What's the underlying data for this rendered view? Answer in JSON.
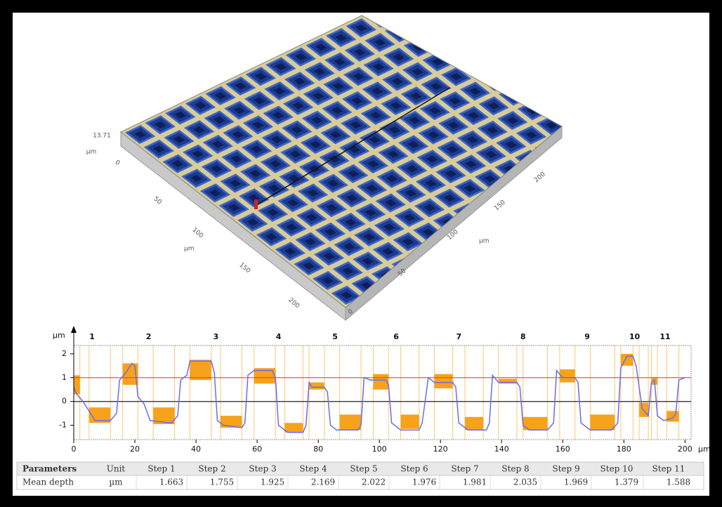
{
  "surface_3d": {
    "z_max": "13.71",
    "z_unit": "µm",
    "left_axis": {
      "labels": [
        "0",
        "50",
        "100",
        "150",
        "200"
      ],
      "unit": "µm"
    },
    "right_axis": {
      "labels": [
        "0",
        "50",
        "100",
        "150",
        "200"
      ],
      "unit": "µm"
    }
  },
  "chart_data": {
    "type": "line",
    "x_unit": "µm",
    "y_unit": "µm",
    "xlim": [
      0,
      202
    ],
    "ylim": [
      -1.6,
      2.35
    ],
    "xticks": [
      0,
      20,
      40,
      60,
      80,
      100,
      120,
      140,
      160,
      180,
      200
    ],
    "yticks": [
      -1,
      0,
      1,
      2
    ],
    "x": [
      0,
      1,
      3,
      6,
      7,
      12,
      14,
      15,
      17,
      19,
      20,
      21,
      23,
      25,
      32,
      34,
      35,
      37,
      38,
      45,
      46,
      47,
      49,
      55,
      56,
      57,
      59,
      60,
      65,
      66,
      67,
      69,
      70,
      75,
      76,
      77,
      78,
      82,
      83,
      84,
      86,
      87,
      93,
      94,
      95,
      97,
      102,
      103,
      104,
      106,
      107,
      113,
      114,
      116,
      118,
      124,
      125,
      126,
      128,
      129,
      135,
      136,
      137,
      139,
      145,
      146,
      147,
      149,
      155,
      157,
      158,
      160,
      164,
      165,
      166,
      168,
      169,
      176,
      178,
      179,
      181,
      183,
      184,
      186,
      188,
      189,
      190,
      191,
      193,
      196,
      197,
      198,
      200
    ],
    "series": [
      {
        "color": "#6b6bf0",
        "values": [
          0.6,
          0.3,
          0.0,
          -0.6,
          -0.8,
          -0.8,
          -0.5,
          0.9,
          1.2,
          1.6,
          1.5,
          0.2,
          -0.1,
          -0.8,
          -0.9,
          -0.6,
          0.9,
          1.1,
          1.7,
          1.7,
          1.2,
          -0.8,
          -1.0,
          -1.1,
          -0.9,
          1.1,
          1.3,
          1.3,
          1.3,
          1.0,
          -1.0,
          -1.2,
          -1.3,
          -1.3,
          -1.0,
          0.8,
          0.6,
          0.6,
          0.4,
          -1.0,
          -1.2,
          -1.2,
          -1.2,
          -1.0,
          1.0,
          0.9,
          0.9,
          0.7,
          -0.9,
          -1.1,
          -1.2,
          -1.2,
          -0.9,
          1.0,
          0.8,
          0.8,
          0.6,
          -0.9,
          -1.1,
          -1.2,
          -1.2,
          -0.9,
          1.1,
          0.8,
          0.8,
          0.6,
          -1.0,
          -1.2,
          -1.2,
          -0.9,
          1.3,
          1.0,
          1.0,
          0.8,
          -0.9,
          -1.1,
          -1.2,
          -1.2,
          -0.9,
          1.4,
          1.9,
          1.9,
          1.5,
          -0.3,
          -0.6,
          0.8,
          0.9,
          -0.6,
          -0.8,
          -0.7,
          -0.5,
          0.9,
          1.0
        ]
      }
    ],
    "reference_lines": [
      {
        "value": 0,
        "color": "#222222"
      },
      {
        "value": 1,
        "color": "#e84040"
      }
    ],
    "region_color": "#f7a21b",
    "steps": [
      {
        "label": "1",
        "regions": [
          {
            "x": [
              0,
              2
            ],
            "y": [
              0.3,
              1.1
            ]
          },
          {
            "x": [
              5,
              12
            ],
            "y": [
              -0.9,
              -0.25
            ]
          }
        ]
      },
      {
        "label": "2",
        "regions": [
          {
            "x": [
              16,
              21
            ],
            "y": [
              0.7,
              1.6
            ]
          },
          {
            "x": [
              26,
              33
            ],
            "y": [
              -0.95,
              -0.25
            ]
          }
        ]
      },
      {
        "label": "3",
        "regions": [
          {
            "x": [
              38,
              45
            ],
            "y": [
              0.9,
              1.75
            ]
          },
          {
            "x": [
              48,
              55
            ],
            "y": [
              -1.1,
              -0.6
            ]
          }
        ]
      },
      {
        "label": "4",
        "regions": [
          {
            "x": [
              59,
              66
            ],
            "y": [
              0.75,
              1.4
            ]
          },
          {
            "x": [
              69,
              75
            ],
            "y": [
              -1.3,
              -0.9
            ]
          }
        ]
      },
      {
        "label": "5",
        "regions": [
          {
            "x": [
              77,
              82
            ],
            "y": [
              0.5,
              0.8
            ]
          },
          {
            "x": [
              87,
              94
            ],
            "y": [
              -1.2,
              -0.55
            ]
          }
        ]
      },
      {
        "label": "6",
        "regions": [
          {
            "x": [
              98,
              103
            ],
            "y": [
              0.5,
              1.15
            ]
          },
          {
            "x": [
              107,
              113
            ],
            "y": [
              -1.15,
              -0.55
            ]
          }
        ]
      },
      {
        "label": "7",
        "regions": [
          {
            "x": [
              118,
              124
            ],
            "y": [
              0.55,
              1.15
            ]
          },
          {
            "x": [
              128,
              134
            ],
            "y": [
              -1.2,
              -0.65
            ]
          }
        ]
      },
      {
        "label": "8",
        "regions": [
          {
            "x": [
              139,
              145
            ],
            "y": [
              0.75,
              0.95
            ]
          },
          {
            "x": [
              147,
              155
            ],
            "y": [
              -1.2,
              -0.65
            ]
          }
        ]
      },
      {
        "label": "9",
        "regions": [
          {
            "x": [
              159,
              164
            ],
            "y": [
              0.8,
              1.35
            ]
          },
          {
            "x": [
              169,
              177
            ],
            "y": [
              -1.2,
              -0.55
            ]
          }
        ]
      },
      {
        "label": "10",
        "regions": [
          {
            "x": [
              179,
              183
            ],
            "y": [
              1.5,
              2.0
            ]
          },
          {
            "x": [
              185,
              188
            ],
            "y": [
              -0.65,
              -0.05
            ]
          }
        ]
      },
      {
        "label": "11",
        "regions": [
          {
            "x": [
              189,
              191
            ],
            "y": [
              0.7,
              1.0
            ]
          },
          {
            "x": [
              194,
              198
            ],
            "y": [
              -0.85,
              -0.4
            ]
          }
        ]
      }
    ]
  },
  "table": {
    "header": [
      "Parameters",
      "Unit",
      "Step 1",
      "Step 2",
      "Step 3",
      "Step 4",
      "Step 5",
      "Step 6",
      "Step 7",
      "Step 8",
      "Step 9",
      "Step 10",
      "Step 11"
    ],
    "rows": [
      [
        "Mean depth",
        "µm",
        1.663,
        1.755,
        1.925,
        2.169,
        2.022,
        1.976,
        1.981,
        2.035,
        1.969,
        1.379,
        1.588
      ]
    ]
  }
}
